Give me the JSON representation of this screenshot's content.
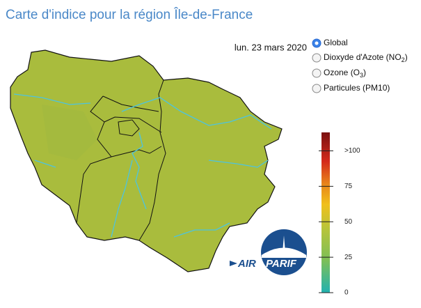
{
  "title": "Carte d'indice pour la région Île-de-France",
  "date": "lun. 23 mars 2020",
  "options": [
    {
      "text": "Global"
    },
    {
      "text": "Dioxyde d'Azote (NO",
      "sub": "2",
      "after": ")"
    },
    {
      "text": "Ozone (O",
      "sub": "3",
      "after": ")"
    },
    {
      "text": "Particules (PM10)"
    }
  ],
  "selected": 0,
  "scale": {
    "lim": [
      0,
      113
    ],
    "ticks": [
      0,
      25,
      50,
      75,
      {
        "value": 100,
        "label": ">100"
      }
    ]
  },
  "logo": {
    "part1": "AIR",
    "part2": "PARIF"
  }
}
